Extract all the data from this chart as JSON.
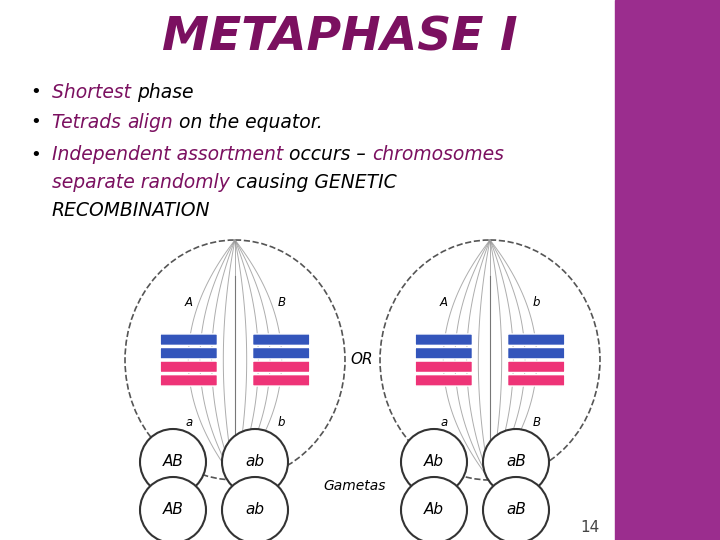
{
  "title": "METAPHASE I",
  "title_color": "#7B1060",
  "background_color": "#FFFFFF",
  "sidebar_color": "#9B2D8E",
  "page_number": "14",
  "blue_color": "#3355BB",
  "pink_color": "#EE3377",
  "bullet1_parts": [
    {
      "text": "Shortest ",
      "color": "#7B1060"
    },
    {
      "text": "phase",
      "color": "#000000"
    }
  ],
  "bullet2_parts": [
    {
      "text": "Tetrads ",
      "color": "#7B1060"
    },
    {
      "text": "align",
      "color": "#7B1060"
    },
    {
      "text": " on the equator.",
      "color": "#000000"
    }
  ],
  "bullet3_line1_parts": [
    {
      "text": "Independent assortment ",
      "color": "#7B1060"
    },
    {
      "text": "occurs – ",
      "color": "#000000"
    },
    {
      "text": "chromosomes",
      "color": "#7B1060"
    }
  ],
  "bullet3_line2_parts": [
    {
      "text": "separate randomly ",
      "color": "#7B1060"
    },
    {
      "text": "causing GENETIC",
      "color": "#000000"
    }
  ],
  "bullet3_line3_parts": [
    {
      "text": "RECOMBINATION",
      "color": "#000000"
    }
  ],
  "left_cell_labels": [
    "A",
    "B",
    "a",
    "b"
  ],
  "right_cell_labels": [
    "A",
    "b",
    "a",
    "B"
  ],
  "gametes_left": [
    [
      "AB",
      "ab"
    ],
    [
      "AB",
      "ab"
    ]
  ],
  "gametes_right": [
    [
      "Ab",
      "aB"
    ],
    [
      "Ab",
      "aB"
    ]
  ]
}
